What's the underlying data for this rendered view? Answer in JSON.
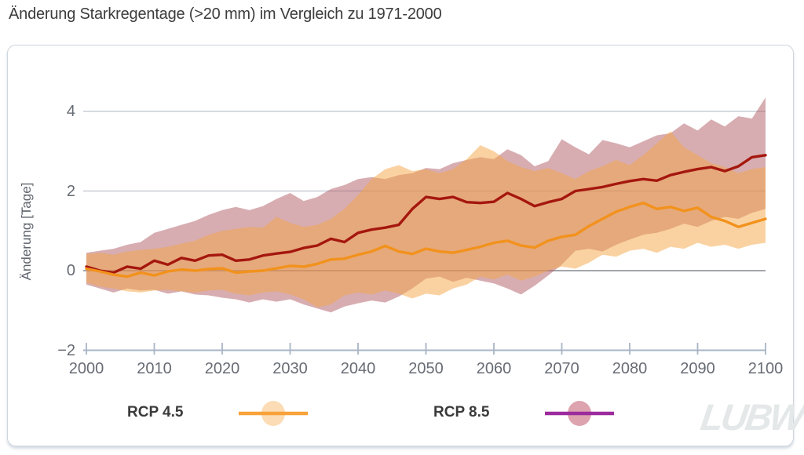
{
  "page_title": "Änderung Starkregentage (>20 mm) im Vergleich zu 1971-2000",
  "branding": {
    "logo_text": "LUBW"
  },
  "chart_data": {
    "type": "line",
    "title": "Änderung Starkregentage (>20 mm) im Vergleich zu 1971-2000",
    "xlabel": "",
    "ylabel": "Änderung [Tage]",
    "baseline_period": "1971-2000",
    "xlim": [
      2000,
      2100
    ],
    "ylim": [
      -2,
      4.5
    ],
    "grid": "horizontal",
    "legend_position": "bottom",
    "xticks": [
      2000,
      2010,
      2020,
      2030,
      2040,
      2050,
      2060,
      2070,
      2080,
      2090,
      2100
    ],
    "yticks": [
      {
        "label": "4",
        "value": 4
      },
      {
        "label": "2",
        "value": 2
      },
      {
        "label": "0",
        "value": 0
      },
      {
        "label": "−2",
        "value": -2
      }
    ],
    "x": [
      2000,
      2002,
      2004,
      2006,
      2008,
      2010,
      2012,
      2014,
      2016,
      2018,
      2020,
      2022,
      2024,
      2026,
      2028,
      2030,
      2032,
      2034,
      2036,
      2038,
      2040,
      2042,
      2044,
      2046,
      2048,
      2050,
      2052,
      2054,
      2056,
      2058,
      2060,
      2062,
      2064,
      2066,
      2068,
      2070,
      2072,
      2074,
      2076,
      2078,
      2080,
      2082,
      2084,
      2086,
      2088,
      2090,
      2092,
      2094,
      2096,
      2098,
      2100
    ],
    "series": [
      {
        "name": "RCP 4.5",
        "line_color": "#f2921d",
        "band_fill": "#f5a545",
        "legend_line": "#f7a23a",
        "legend_fill": "#fbdcb4",
        "median": [
          0.05,
          -0.02,
          -0.1,
          -0.15,
          -0.05,
          -0.12,
          -0.02,
          0.03,
          0.0,
          0.04,
          0.06,
          -0.05,
          -0.02,
          0.0,
          0.06,
          0.12,
          0.1,
          0.17,
          0.28,
          0.3,
          0.4,
          0.48,
          0.62,
          0.48,
          0.42,
          0.55,
          0.48,
          0.45,
          0.52,
          0.6,
          0.7,
          0.75,
          0.63,
          0.58,
          0.75,
          0.85,
          0.9,
          1.12,
          1.3,
          1.48,
          1.6,
          1.7,
          1.55,
          1.6,
          1.5,
          1.58,
          1.35,
          1.25,
          1.1,
          1.2,
          1.3
        ],
        "lower": [
          -0.3,
          -0.4,
          -0.45,
          -0.52,
          -0.55,
          -0.5,
          -0.48,
          -0.52,
          -0.55,
          -0.5,
          -0.48,
          -0.58,
          -0.62,
          -0.55,
          -0.52,
          -0.6,
          -0.72,
          -0.92,
          -0.85,
          -0.62,
          -0.55,
          -0.6,
          -0.5,
          -0.58,
          -0.7,
          -0.58,
          -0.62,
          -0.45,
          -0.35,
          -0.15,
          -0.22,
          -0.1,
          -0.25,
          -0.15,
          0.0,
          0.1,
          0.05,
          0.2,
          0.4,
          0.35,
          0.5,
          0.55,
          0.45,
          0.6,
          0.55,
          0.7,
          0.6,
          0.65,
          0.55,
          0.65,
          0.7
        ],
        "upper": [
          0.42,
          0.45,
          0.4,
          0.48,
          0.52,
          0.55,
          0.6,
          0.68,
          0.75,
          0.9,
          1.0,
          1.05,
          1.1,
          1.08,
          1.35,
          1.2,
          1.1,
          1.15,
          1.3,
          1.55,
          1.9,
          2.3,
          2.55,
          2.65,
          2.5,
          2.55,
          2.45,
          2.55,
          2.8,
          3.15,
          3.0,
          2.75,
          2.6,
          2.5,
          2.58,
          2.45,
          2.3,
          2.5,
          2.62,
          2.78,
          2.65,
          2.9,
          3.2,
          3.5,
          3.1,
          2.9,
          2.7,
          2.6,
          2.45,
          2.55,
          2.6
        ]
      },
      {
        "name": "RCP 8.5",
        "line_color": "#a5170e",
        "band_fill": "#b05b63",
        "legend_line": "#9c2b9c",
        "legend_fill": "#dda3ae",
        "median": [
          0.1,
          0.0,
          -0.05,
          0.1,
          0.05,
          0.25,
          0.15,
          0.32,
          0.25,
          0.38,
          0.4,
          0.25,
          0.28,
          0.38,
          0.43,
          0.47,
          0.57,
          0.63,
          0.8,
          0.72,
          0.95,
          1.03,
          1.08,
          1.15,
          1.55,
          1.85,
          1.8,
          1.85,
          1.72,
          1.7,
          1.73,
          1.95,
          1.8,
          1.62,
          1.72,
          1.8,
          2.0,
          2.05,
          2.1,
          2.18,
          2.25,
          2.3,
          2.26,
          2.4,
          2.48,
          2.55,
          2.6,
          2.5,
          2.62,
          2.85,
          2.9
        ],
        "lower": [
          -0.35,
          -0.45,
          -0.55,
          -0.45,
          -0.5,
          -0.48,
          -0.58,
          -0.52,
          -0.6,
          -0.62,
          -0.68,
          -0.72,
          -0.8,
          -0.72,
          -0.78,
          -0.72,
          -0.85,
          -0.95,
          -1.05,
          -0.9,
          -0.82,
          -0.75,
          -0.8,
          -0.65,
          -0.45,
          -0.2,
          -0.15,
          -0.28,
          -0.18,
          -0.25,
          -0.32,
          -0.45,
          -0.6,
          -0.38,
          -0.12,
          0.15,
          0.5,
          0.55,
          0.48,
          0.65,
          0.78,
          0.9,
          0.95,
          1.05,
          1.18,
          1.1,
          1.25,
          1.35,
          1.3,
          1.45,
          1.55
        ],
        "upper": [
          0.45,
          0.5,
          0.55,
          0.65,
          0.72,
          0.95,
          1.05,
          1.15,
          1.25,
          1.4,
          1.52,
          1.6,
          1.52,
          1.62,
          1.8,
          1.95,
          1.75,
          1.85,
          2.05,
          2.15,
          2.3,
          2.35,
          2.3,
          2.4,
          2.45,
          2.58,
          2.55,
          2.7,
          2.78,
          2.85,
          2.8,
          3.05,
          2.9,
          2.62,
          2.75,
          3.3,
          3.1,
          2.92,
          3.28,
          3.2,
          3.1,
          3.25,
          3.4,
          3.45,
          3.7,
          3.52,
          3.8,
          3.62,
          3.88,
          3.82,
          4.35
        ]
      }
    ],
    "style": {
      "band_opacity": 0.5,
      "grid_color": "#c9cdd6",
      "zero_line_color": "#85888f",
      "axis_color": "#a9b5c6",
      "tick_label_color": "#676b73"
    }
  }
}
